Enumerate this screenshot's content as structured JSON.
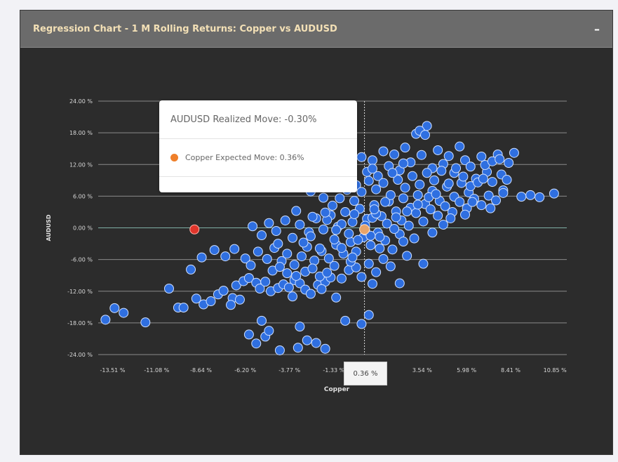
{
  "panel": {
    "title": "Regression Chart - 1 M Rolling Returns: Copper vs AUDUSD",
    "collapse_label": "–"
  },
  "tooltip": {
    "header": "AUDUSD Realized Move: -0.30%",
    "expected_label": "Copper Expected Move: 0.36%",
    "dot_color": "#ef7f2a"
  },
  "crosshair_label": "0.36 %",
  "colors": {
    "point": "#2f6fe0",
    "point_stroke": "#cfe0ff",
    "outlier": "#e0352b",
    "highlight": "#e8a46a"
  },
  "chart_data": {
    "type": "scatter",
    "title": "Regression Chart - 1 M Rolling Returns: Copper vs AUDUSD",
    "xlabel": "Copper",
    "ylabel": "AUDUSD",
    "xlim": [
      -14.3,
      11.5
    ],
    "ylim": [
      -24,
      24
    ],
    "xticks": [
      "-13.51 %",
      "-11.08 %",
      "-8.64 %",
      "-6.20 %",
      "-3.77 %",
      "-1.33 %",
      "3.54 %",
      "5.98 %",
      "8.41 %",
      "10.85 %"
    ],
    "xtick_values": [
      -13.51,
      -11.08,
      -8.64,
      -6.2,
      -3.77,
      -1.33,
      3.54,
      5.98,
      8.41,
      10.85
    ],
    "yticks": [
      "24.00 %",
      "18.00 %",
      "12.00 %",
      "6.00 %",
      "0.00 %",
      "-6.00 %",
      "-12.00 %",
      "-18.00 %",
      "-24.00 %"
    ],
    "ytick_values": [
      24,
      18,
      12,
      6,
      0,
      -6,
      -12,
      -18,
      -24
    ],
    "grid": true,
    "points": [
      [
        -13.9,
        -17.4
      ],
      [
        -13.4,
        -15.2
      ],
      [
        -12.9,
        -16.1
      ],
      [
        -11.7,
        -17.9
      ],
      [
        -10.4,
        -11.5
      ],
      [
        -9.9,
        -15.1
      ],
      [
        -9.6,
        -15.1
      ],
      [
        -8.9,
        -13.4
      ],
      [
        -8.5,
        -14.5
      ],
      [
        -8.1,
        -13.9
      ],
      [
        -7.7,
        -12.6
      ],
      [
        -7.4,
        -11.9
      ],
      [
        -6.9,
        -13.3
      ],
      [
        -6.7,
        -10.9
      ],
      [
        -6.3,
        -10.1
      ],
      [
        -6.0,
        -9.5
      ],
      [
        -5.6,
        -10.4
      ],
      [
        -5.4,
        -11.5
      ],
      [
        -5.1,
        -10.2
      ],
      [
        -4.8,
        -12.0
      ],
      [
        -4.4,
        -11.4
      ],
      [
        -4.1,
        -10.7
      ],
      [
        -3.8,
        -11.3
      ],
      [
        -3.5,
        -9.9
      ],
      [
        -3.2,
        -10.5
      ],
      [
        -2.9,
        -11.7
      ],
      [
        -2.6,
        -12.5
      ],
      [
        -2.2,
        -10.8
      ],
      [
        -1.8,
        -10.2
      ],
      [
        -1.5,
        -9.4
      ],
      [
        -9.2,
        -7.9
      ],
      [
        -8.6,
        -5.6
      ],
      [
        -7.9,
        -4.2
      ],
      [
        -7.3,
        -5.4
      ],
      [
        -6.8,
        -4.0
      ],
      [
        -6.2,
        -5.8
      ],
      [
        -5.9,
        -7.1
      ],
      [
        -5.5,
        -4.5
      ],
      [
        -5.0,
        -5.9
      ],
      [
        -4.6,
        -3.8
      ],
      [
        -4.2,
        -6.3
      ],
      [
        -3.9,
        -4.9
      ],
      [
        -3.5,
        -7.0
      ],
      [
        -3.1,
        -5.4
      ],
      [
        -2.8,
        -3.6
      ],
      [
        -2.4,
        -6.2
      ],
      [
        -2.0,
        -4.4
      ],
      [
        -1.6,
        -5.8
      ],
      [
        -1.2,
        -3.2
      ],
      [
        -0.8,
        -4.9
      ],
      [
        -0.4,
        -2.7
      ],
      [
        -0.1,
        -4.5
      ],
      [
        0.3,
        -1.8
      ],
      [
        0.7,
        -3.3
      ],
      [
        1.1,
        -0.9
      ],
      [
        1.5,
        -2.4
      ],
      [
        1.9,
        -4.1
      ],
      [
        2.3,
        -1.2
      ],
      [
        2.7,
        -5.3
      ],
      [
        3.1,
        -2.0
      ],
      [
        -5.8,
        0.3
      ],
      [
        -5.3,
        -1.4
      ],
      [
        -4.9,
        0.9
      ],
      [
        -4.5,
        -0.6
      ],
      [
        -4.0,
        1.4
      ],
      [
        -3.6,
        -1.9
      ],
      [
        -3.2,
        0.6
      ],
      [
        -2.7,
        -0.8
      ],
      [
        -2.3,
        1.8
      ],
      [
        -1.9,
        -0.3
      ],
      [
        -1.5,
        2.4
      ],
      [
        -1.1,
        0.2
      ],
      [
        -0.7,
        3.0
      ],
      [
        -0.3,
        1.1
      ],
      [
        0.1,
        3.6
      ],
      [
        0.5,
        1.7
      ],
      [
        0.9,
        4.3
      ],
      [
        1.3,
        2.2
      ],
      [
        1.7,
        5.0
      ],
      [
        2.1,
        3.1
      ],
      [
        2.5,
        5.6
      ],
      [
        2.9,
        3.8
      ],
      [
        3.3,
        6.2
      ],
      [
        3.7,
        4.5
      ],
      [
        4.1,
        7.0
      ],
      [
        4.5,
        5.1
      ],
      [
        4.9,
        7.8
      ],
      [
        5.3,
        5.9
      ],
      [
        5.7,
        8.5
      ],
      [
        6.1,
        6.7
      ],
      [
        -2.6,
        6.9
      ],
      [
        -2.2,
        8.6
      ],
      [
        -1.9,
        5.7
      ],
      [
        -1.6,
        10.5
      ],
      [
        -1.3,
        7.8
      ],
      [
        -1.0,
        12.1
      ],
      [
        -0.7,
        9.3
      ],
      [
        -0.4,
        11.2
      ],
      [
        -0.1,
        8.1
      ],
      [
        0.2,
        13.4
      ],
      [
        0.5,
        10.6
      ],
      [
        0.8,
        12.8
      ],
      [
        1.1,
        9.8
      ],
      [
        1.4,
        14.5
      ],
      [
        1.7,
        11.7
      ],
      [
        2.0,
        13.9
      ],
      [
        2.3,
        10.9
      ],
      [
        2.6,
        15.2
      ],
      [
        2.9,
        12.4
      ],
      [
        3.2,
        17.8
      ],
      [
        3.5,
        13.8
      ],
      [
        3.8,
        19.3
      ],
      [
        4.1,
        11.3
      ],
      [
        4.4,
        14.7
      ],
      [
        4.7,
        12.1
      ],
      [
        5.0,
        13.6
      ],
      [
        5.3,
        10.4
      ],
      [
        5.6,
        15.4
      ],
      [
        5.9,
        12.8
      ],
      [
        6.2,
        11.6
      ],
      [
        6.5,
        9.3
      ],
      [
        6.8,
        13.5
      ],
      [
        7.1,
        10.6
      ],
      [
        7.4,
        8.7
      ],
      [
        7.7,
        13.9
      ],
      [
        8.0,
        7.1
      ],
      [
        8.3,
        12.3
      ],
      [
        8.6,
        14.2
      ],
      [
        -3.4,
        3.2
      ],
      [
        -3.0,
        -2.8
      ],
      [
        -2.5,
        2.1
      ],
      [
        -2.1,
        -3.9
      ],
      [
        -1.7,
        1.5
      ],
      [
        -1.3,
        -2.2
      ],
      [
        -0.9,
        0.7
      ],
      [
        -0.5,
        -1.1
      ],
      [
        -0.2,
        2.6
      ],
      [
        0.4,
        -0.5
      ],
      [
        0.8,
        1.9
      ],
      [
        1.2,
        -1.7
      ],
      [
        1.6,
        0.8
      ],
      [
        2.0,
        -0.2
      ],
      [
        2.4,
        1.4
      ],
      [
        2.8,
        0.4
      ],
      [
        3.2,
        2.8
      ],
      [
        3.6,
        1.2
      ],
      [
        4.0,
        3.5
      ],
      [
        4.4,
        2.3
      ],
      [
        4.8,
        4.1
      ],
      [
        5.2,
        3.0
      ],
      [
        5.6,
        4.9
      ],
      [
        6.0,
        3.7
      ],
      [
        6.4,
        5.5
      ],
      [
        6.8,
        4.3
      ],
      [
        7.2,
        6.1
      ],
      [
        7.6,
        5.2
      ],
      [
        8.0,
        6.6
      ],
      [
        7.9,
        10.1
      ],
      [
        -4.7,
        -8.1
      ],
      [
        -4.3,
        -7.4
      ],
      [
        -3.9,
        -8.6
      ],
      [
        -3.4,
        -9.1
      ],
      [
        -2.9,
        -8.3
      ],
      [
        -2.5,
        -7.7
      ],
      [
        -2.1,
        -9.2
      ],
      [
        -1.7,
        -8.5
      ],
      [
        -1.3,
        -7.2
      ],
      [
        -0.9,
        -9.6
      ],
      [
        -0.5,
        -8.0
      ],
      [
        -0.1,
        -7.5
      ],
      [
        0.2,
        -9.3
      ],
      [
        0.6,
        -6.8
      ],
      [
        1.0,
        -8.4
      ],
      [
        1.4,
        -5.9
      ],
      [
        1.8,
        -7.3
      ],
      [
        -0.7,
        -17.6
      ],
      [
        0.2,
        -18.2
      ],
      [
        -2.8,
        -21.3
      ],
      [
        -3.3,
        -22.7
      ],
      [
        -4.3,
        -23.2
      ],
      [
        -5.1,
        -20.6
      ],
      [
        -5.6,
        -21.9
      ],
      [
        -6.0,
        -20.2
      ],
      [
        -4.9,
        -19.5
      ],
      [
        -5.3,
        -17.6
      ],
      [
        -1.8,
        -22.9
      ],
      [
        -2.3,
        -21.8
      ],
      [
        -3.2,
        -18.7
      ],
      [
        0.6,
        -16.5
      ],
      [
        -0.9,
        -3.8
      ],
      [
        -0.4,
        -6.4
      ],
      [
        0.0,
        -2.3
      ],
      [
        0.4,
        0.4
      ],
      [
        0.7,
        -1.5
      ],
      [
        1.0,
        2.7
      ],
      [
        -1.4,
        4.2
      ],
      [
        -1.0,
        5.6
      ],
      [
        -0.6,
        7.2
      ],
      [
        -0.2,
        5.1
      ],
      [
        0.2,
        6.8
      ],
      [
        0.6,
        8.9
      ],
      [
        1.0,
        7.3
      ],
      [
        1.4,
        8.5
      ],
      [
        1.8,
        6.2
      ],
      [
        2.2,
        9.1
      ],
      [
        2.6,
        7.6
      ],
      [
        3.0,
        9.8
      ],
      [
        3.4,
        8.2
      ],
      [
        3.8,
        10.4
      ],
      [
        4.2,
        9.0
      ],
      [
        4.6,
        10.8
      ],
      [
        5.0,
        8.4
      ],
      [
        5.4,
        11.3
      ],
      [
        5.8,
        9.7
      ],
      [
        6.2,
        7.9
      ],
      [
        6.6,
        8.6
      ],
      [
        7.0,
        11.9
      ],
      [
        7.4,
        12.6
      ],
      [
        7.8,
        13.0
      ],
      [
        8.2,
        9.1
      ],
      [
        9.0,
        5.9
      ],
      [
        9.5,
        6.2
      ],
      [
        10.0,
        5.8
      ],
      [
        10.8,
        6.5
      ],
      [
        4.1,
        -0.9
      ],
      [
        3.6,
        -6.8
      ],
      [
        2.3,
        -10.5
      ],
      [
        0.8,
        -10.6
      ],
      [
        -1.2,
        -13.2
      ],
      [
        -2.0,
        -11.6
      ],
      [
        -3.6,
        -13.0
      ],
      [
        -6.5,
        -13.6
      ],
      [
        -7.0,
        -14.6
      ],
      [
        -4.4,
        -3.0
      ],
      [
        -2.6,
        -1.6
      ],
      [
        -1.8,
        2.9
      ],
      [
        -1.2,
        -0.4
      ],
      [
        0.9,
        3.5
      ],
      [
        1.5,
        4.9
      ],
      [
        2.1,
        2.0
      ],
      [
        2.7,
        3.1
      ],
      [
        3.3,
        4.4
      ],
      [
        3.9,
        5.8
      ],
      [
        4.3,
        6.4
      ],
      [
        6.9,
        9.3
      ],
      [
        5.1,
        1.8
      ],
      [
        5.9,
        2.5
      ],
      [
        6.3,
        4.9
      ],
      [
        7.3,
        3.7
      ],
      [
        4.7,
        0.6
      ],
      [
        1.9,
        10.4
      ],
      [
        2.5,
        12.2
      ],
      [
        0.8,
        11.2
      ],
      [
        3.4,
        18.4
      ],
      [
        3.7,
        17.6
      ],
      [
        -0.3,
        -5.6
      ],
      [
        1.2,
        -3.9
      ],
      [
        2.5,
        -2.6
      ]
    ],
    "outlier": [
      -9.0,
      -0.3
    ],
    "highlight": [
      0.36,
      -0.3
    ]
  }
}
